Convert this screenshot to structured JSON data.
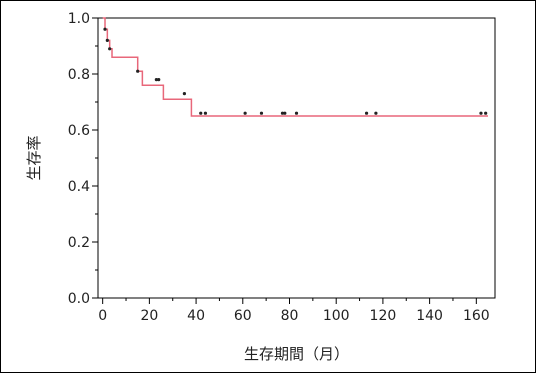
{
  "chart_data": {
    "type": "line",
    "title": "",
    "xlabel": "生存期間（月）",
    "ylabel": "生存率",
    "xlim": [
      -2,
      168
    ],
    "ylim": [
      0,
      1.0
    ],
    "x_ticks": [
      0,
      20,
      40,
      60,
      80,
      100,
      120,
      140,
      160
    ],
    "x_tick_labels": [
      "0",
      "20",
      "40",
      "60",
      "80",
      "100",
      "120",
      "140",
      "160"
    ],
    "y_ticks": [
      0,
      0.2,
      0.4,
      0.6,
      0.8,
      1.0
    ],
    "y_tick_labels": [
      "0.0",
      "0.2",
      "0.4",
      "0.6",
      "0.8",
      "1.0"
    ],
    "grid": false,
    "series": [
      {
        "step": [
          {
            "x": 0,
            "y": 1.0
          },
          {
            "x": 1,
            "y": 0.96
          },
          {
            "x": 2,
            "y": 0.92
          },
          {
            "x": 3,
            "y": 0.89
          },
          {
            "x": 4,
            "y": 0.86
          },
          {
            "x": 15,
            "y": 0.81
          },
          {
            "x": 17,
            "y": 0.76
          },
          {
            "x": 25,
            "y": 0.76
          },
          {
            "x": 26,
            "y": 0.71
          },
          {
            "x": 38,
            "y": 0.65
          },
          {
            "x": 165,
            "y": 0.65
          }
        ],
        "censored": [
          {
            "x": 1,
            "y": 0.96
          },
          {
            "x": 2,
            "y": 0.92
          },
          {
            "x": 3,
            "y": 0.89
          },
          {
            "x": 15,
            "y": 0.81
          },
          {
            "x": 23,
            "y": 0.78
          },
          {
            "x": 24,
            "y": 0.78
          },
          {
            "x": 35,
            "y": 0.73
          },
          {
            "x": 42,
            "y": 0.66
          },
          {
            "x": 44,
            "y": 0.66
          },
          {
            "x": 61,
            "y": 0.66
          },
          {
            "x": 68,
            "y": 0.66
          },
          {
            "x": 77,
            "y": 0.66
          },
          {
            "x": 78,
            "y": 0.66
          },
          {
            "x": 83,
            "y": 0.66
          },
          {
            "x": 113,
            "y": 0.66
          },
          {
            "x": 117,
            "y": 0.66
          },
          {
            "x": 162,
            "y": 0.66
          },
          {
            "x": 164,
            "y": 0.66
          }
        ]
      }
    ]
  },
  "colors": {
    "curve": "#e8677a",
    "marker": "#222222",
    "axis": "#000000"
  }
}
